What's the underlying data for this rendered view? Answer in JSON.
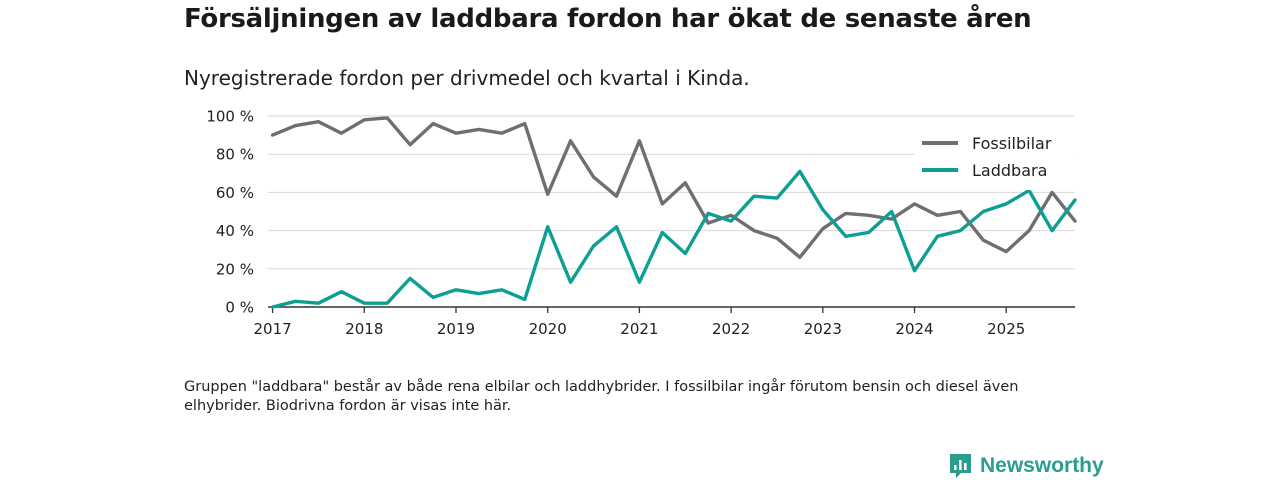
{
  "title": "Försäljningen av laddbara fordon har ökat de senaste åren",
  "subtitle": "Nyregistrerade fordon per drivmedel och kvartal i Kinda.",
  "footnote": "Gruppen \"laddbara\" består av både rena elbilar och laddhybrider. I fossilbilar ingår förutom bensin och diesel även elhybrider. Biodrivna fordon är visas inte här.",
  "brand": {
    "name": "Newsworthy",
    "color": "#2a9d8f",
    "icon": "newsworthy-logo-icon"
  },
  "chart_data": {
    "type": "line",
    "title": "Försäljningen av laddbara fordon har ökat de senaste åren",
    "subtitle": "Nyregistrerade fordon per drivmedel och kvartal i Kinda.",
    "xlabel": "",
    "ylabel": "",
    "x_start": 2017,
    "x_step": 0.25,
    "xlim": [
      2016.95,
      2025.75
    ],
    "ylim": [
      0,
      100
    ],
    "y_ticks": [
      0,
      20,
      40,
      60,
      80,
      100
    ],
    "y_tick_labels": [
      "0 %",
      "20 %",
      "40 %",
      "60 %",
      "80 %",
      "100 %"
    ],
    "x_ticks": [
      2017,
      2018,
      2019,
      2020,
      2021,
      2022,
      2023,
      2024,
      2025
    ],
    "x_tick_labels": [
      "2017",
      "2018",
      "2019",
      "2020",
      "2021",
      "2022",
      "2023",
      "2024",
      "2025"
    ],
    "grid": true,
    "legend_position": "top-right",
    "series": [
      {
        "name": "Fossilbilar",
        "color": "#6e6e73",
        "values": [
          90,
          95,
          97,
          91,
          98,
          99,
          85,
          96,
          91,
          93,
          91,
          96,
          59,
          87,
          68,
          58,
          87,
          54,
          65,
          44,
          48,
          40,
          36,
          26,
          41,
          49,
          48,
          46,
          54,
          48,
          50,
          35,
          29,
          40,
          60,
          45
        ]
      },
      {
        "name": "Laddbara",
        "color": "#0e9f94",
        "values": [
          0,
          3,
          2,
          8,
          2,
          2,
          15,
          5,
          9,
          7,
          9,
          4,
          42,
          13,
          32,
          42,
          13,
          39,
          28,
          49,
          45,
          58,
          57,
          71,
          51,
          37,
          39,
          50,
          19,
          37,
          40,
          50,
          54,
          61,
          40,
          56
        ]
      }
    ]
  }
}
